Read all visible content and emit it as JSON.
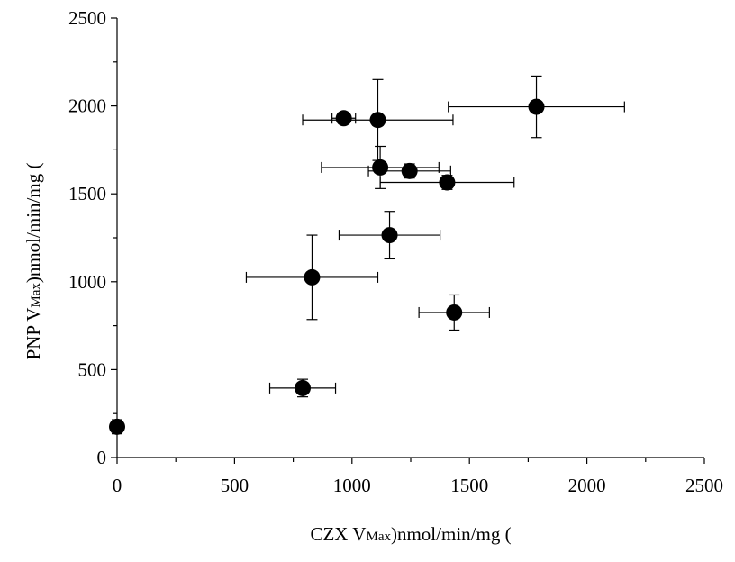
{
  "chart_data": {
    "type": "scatter",
    "title": "",
    "xlabel": {
      "prefix": "CZX V",
      "subscript": "Max",
      "suffix": ")nmol/min/mg ("
    },
    "ylabel": {
      "prefix": "PNP V",
      "subscript": "Max",
      "suffix": ")nmol/min/mg ("
    },
    "xlim": [
      0,
      2500
    ],
    "ylim": [
      0,
      2500
    ],
    "xticks": [
      0,
      500,
      1000,
      1500,
      2000,
      2500
    ],
    "yticks": [
      0,
      500,
      1000,
      1500,
      2000,
      2500
    ],
    "x_tick_labels": [
      "0",
      "500",
      "1000",
      "1500",
      "2000",
      "2500"
    ],
    "y_tick_labels": [
      "0",
      "500",
      "1000",
      "1500",
      "2000",
      "2500"
    ],
    "grid": false,
    "legend": "none",
    "marker_color": "#000000",
    "points": [
      {
        "x": 0,
        "y": 175,
        "xerr": 0,
        "yerr": 40
      },
      {
        "x": 790,
        "y": 395,
        "xerr": 140,
        "yerr": 50
      },
      {
        "x": 830,
        "y": 1025,
        "xerr": 280,
        "yerr": 240
      },
      {
        "x": 965,
        "y": 1930,
        "xerr": 50,
        "yerr": 25
      },
      {
        "x": 1110,
        "y": 1920,
        "xerr": 320,
        "yerr": 230
      },
      {
        "x": 1120,
        "y": 1650,
        "xerr": 250,
        "yerr": 120
      },
      {
        "x": 1160,
        "y": 1265,
        "xerr": 215,
        "yerr": 135
      },
      {
        "x": 1245,
        "y": 1630,
        "xerr": 175,
        "yerr": 40
      },
      {
        "x": 1405,
        "y": 1565,
        "xerr": 285,
        "yerr": 40
      },
      {
        "x": 1435,
        "y": 825,
        "xerr": 150,
        "yerr": 100
      },
      {
        "x": 1785,
        "y": 1995,
        "xerr": 375,
        "yerr": 175
      }
    ]
  }
}
